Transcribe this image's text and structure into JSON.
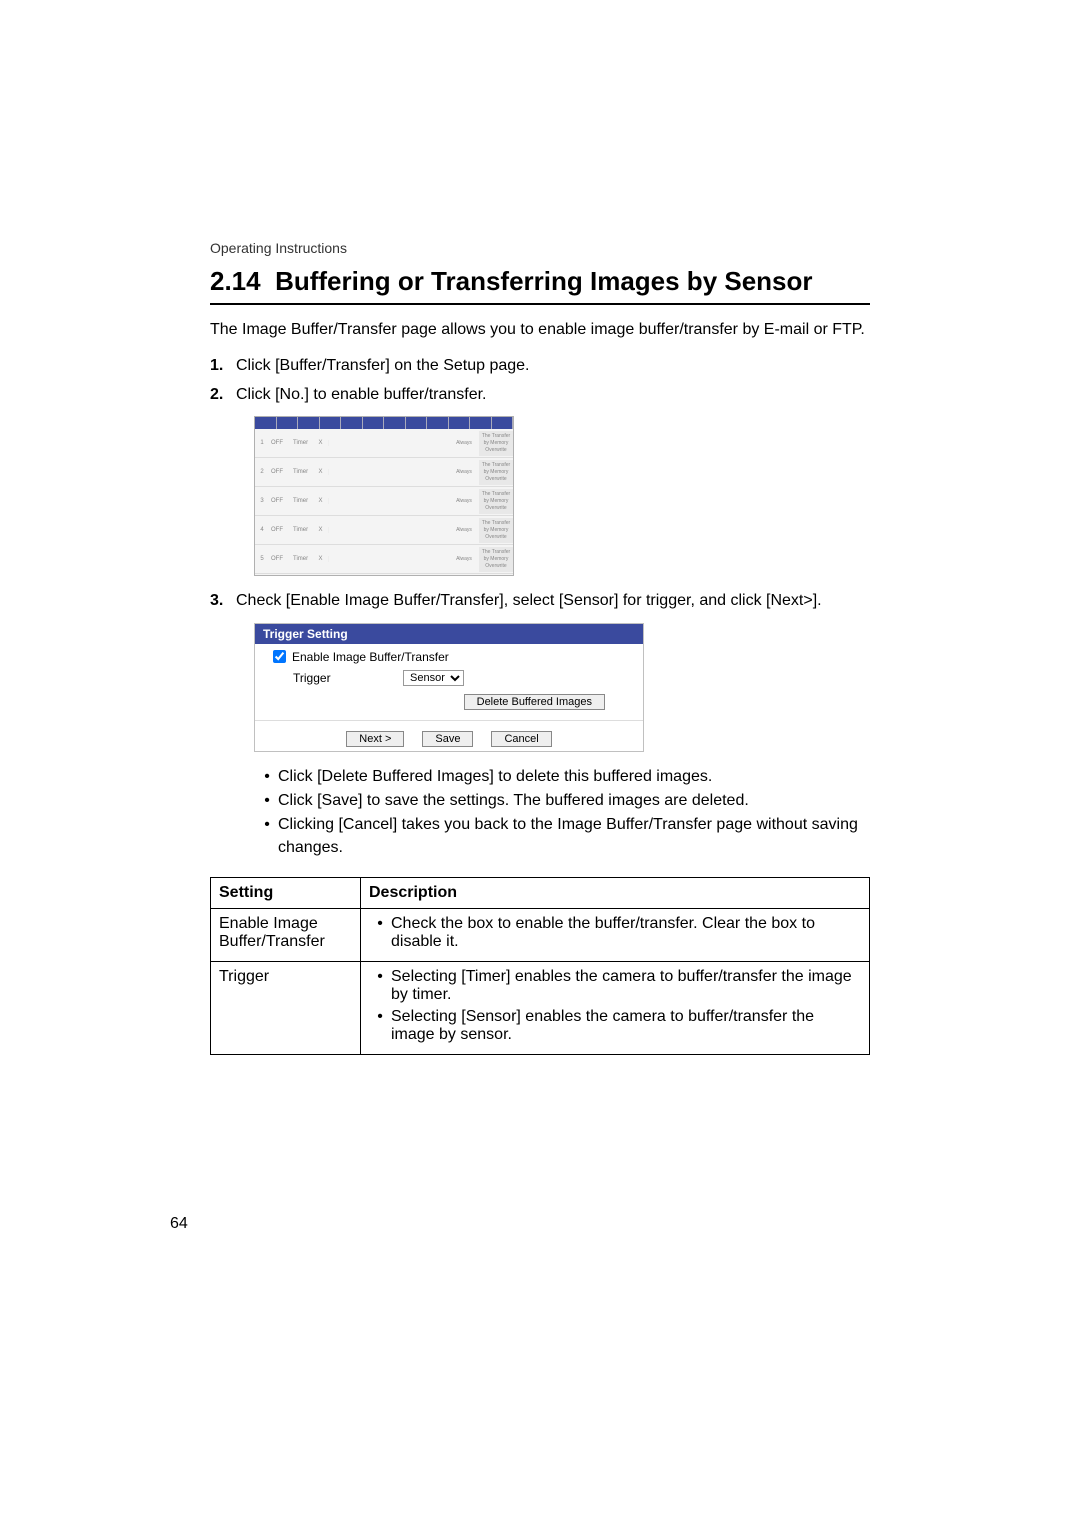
{
  "header": {
    "label": "Operating Instructions"
  },
  "section": {
    "number": "2.14",
    "title": "Buffering or Transferring Images by Sensor"
  },
  "intro": "The Image Buffer/Transfer page allows you to enable image buffer/transfer by E-mail or FTP.",
  "steps": {
    "s1": {
      "num": "1.",
      "text": "Click [Buffer/Transfer] on the Setup page."
    },
    "s2": {
      "num": "2.",
      "text": "Click [No.] to enable buffer/transfer."
    },
    "s3": {
      "num": "3.",
      "text": "Check [Enable Image Buffer/Transfer], select [Sensor] for trigger, and click [Next>]."
    }
  },
  "fig1": {
    "row_trigger": "Timer",
    "row_status": "OFF",
    "row_label_always": "Always",
    "row_btn": "The Transfer by Memory Overwrite",
    "nums": [
      "1",
      "2",
      "3",
      "4",
      "5"
    ],
    "day_x": "X"
  },
  "fig2": {
    "title": "Trigger Setting",
    "enable_label": "Enable Image Buffer/Transfer",
    "trigger_label": "Trigger",
    "trigger_value": "Sensor",
    "delete_btn": "Delete Buffered Images",
    "next_btn": "Next >",
    "save_btn": "Save",
    "cancel_btn": "Cancel"
  },
  "bullets": {
    "b1": "Click [Delete Buffered Images] to delete this buffered images.",
    "b2": "Click [Save] to save the settings. The buffered images are deleted.",
    "b3": "Clicking [Cancel] takes you back to the Image Buffer/Transfer page without saving changes."
  },
  "table": {
    "h1": "Setting",
    "h2": "Description",
    "r1c1": "Enable Image Buffer/Transfer",
    "r1c2a": "Check the box to enable the buffer/transfer. Clear the box to disable it.",
    "r2c1": "Trigger",
    "r2c2a": "Selecting [Timer] enables the camera to buffer/transfer the image by timer.",
    "r2c2b": "Selecting [Sensor] enables the camera to buffer/transfer the image by sensor."
  },
  "page_number": "64",
  "colors": {
    "brand_blue": "#3a4a9e",
    "border_gray": "#c0c0c0",
    "text_black": "#000000"
  }
}
